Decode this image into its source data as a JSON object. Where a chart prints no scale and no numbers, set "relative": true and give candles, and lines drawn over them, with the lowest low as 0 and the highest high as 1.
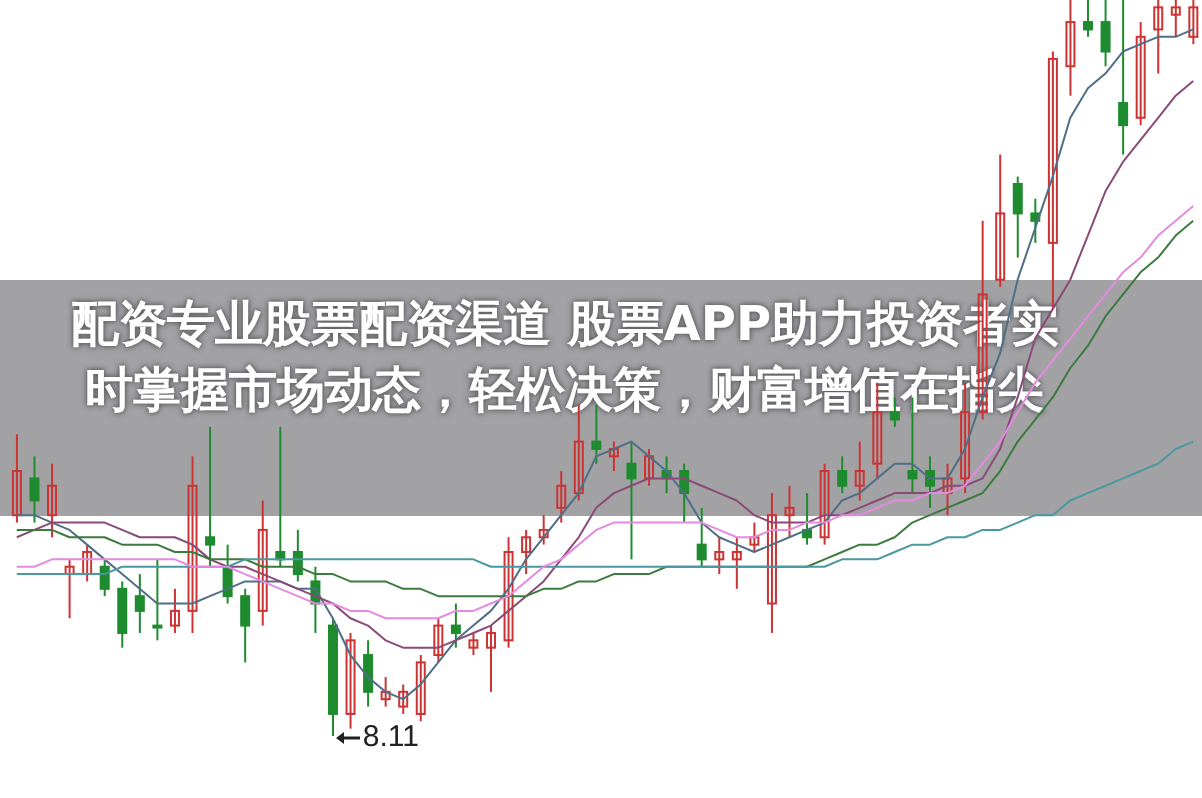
{
  "chart_data": {
    "type": "candlestick",
    "title": "配资专业股票配资渠道 股票APP助力投资者实时掌握市场动态，轻松决策，财富增值在指尖",
    "relative": true,
    "tick_labels": false,
    "annotations": [
      "8.11"
    ],
    "categories": [
      null,
      null,
      null,
      null,
      null,
      null,
      null,
      null,
      null,
      null,
      null,
      null,
      null,
      null,
      null,
      null,
      null,
      null,
      null,
      null,
      null,
      null,
      null,
      null,
      null,
      null,
      null,
      null,
      null,
      null,
      null,
      null,
      null,
      null,
      null,
      null,
      null,
      null,
      null,
      null,
      null,
      null,
      null,
      null,
      null,
      null,
      null,
      null,
      null,
      null,
      null,
      null,
      null,
      null,
      null,
      null,
      null,
      null,
      null,
      null,
      null,
      null,
      null,
      null,
      null,
      null,
      null,
      null
    ],
    "ohlc": [
      [
        0.3,
        0.41,
        0.29,
        0.36
      ],
      [
        0.35,
        0.38,
        0.29,
        0.32
      ],
      [
        0.3,
        0.37,
        0.27,
        0.34
      ],
      [
        0.22,
        0.24,
        0.16,
        0.23
      ],
      [
        0.22,
        0.26,
        0.21,
        0.25
      ],
      [
        0.23,
        0.24,
        0.19,
        0.2
      ],
      [
        0.2,
        0.21,
        0.12,
        0.14
      ],
      [
        0.19,
        0.22,
        0.14,
        0.17
      ],
      [
        0.15,
        0.24,
        0.13,
        0.15
      ],
      [
        0.15,
        0.2,
        0.14,
        0.17
      ],
      [
        0.17,
        0.38,
        0.14,
        0.34
      ],
      [
        0.27,
        0.42,
        0.23,
        0.26
      ],
      [
        0.23,
        0.26,
        0.18,
        0.19
      ],
      [
        0.19,
        0.2,
        0.1,
        0.15
      ],
      [
        0.17,
        0.32,
        0.15,
        0.28
      ],
      [
        0.25,
        0.42,
        0.23,
        0.24
      ],
      [
        0.25,
        0.28,
        0.21,
        0.22
      ],
      [
        0.21,
        0.23,
        0.14,
        0.18
      ],
      [
        0.15,
        0.16,
        0,
        0.03
      ],
      [
        0.03,
        0.14,
        0.01,
        0.13
      ],
      [
        0.11,
        0.13,
        0.04,
        0.06
      ],
      [
        0.05,
        0.08,
        0.04,
        0.06
      ],
      [
        0.04,
        0.07,
        0.03,
        0.06
      ],
      [
        0.03,
        0.11,
        0.02,
        0.1
      ],
      [
        0.11,
        0.16,
        0.1,
        0.15
      ],
      [
        0.15,
        0.18,
        0.12,
        0.14
      ],
      [
        0.12,
        0.14,
        0.11,
        0.13
      ],
      [
        0.12,
        0.15,
        0.06,
        0.14
      ],
      [
        0.13,
        0.27,
        0.12,
        0.25
      ],
      [
        0.25,
        0.28,
        0.22,
        0.27
      ],
      [
        0.27,
        0.3,
        0.26,
        0.28
      ],
      [
        0.31,
        0.36,
        0.29,
        0.34
      ],
      [
        0.33,
        0.45,
        0.32,
        0.4
      ],
      [
        0.4,
        0.45,
        0.37,
        0.39
      ],
      [
        0.38,
        0.4,
        0.36,
        0.39
      ],
      [
        0.37,
        0.4,
        0.24,
        0.35
      ],
      [
        0.35,
        0.39,
        0.34,
        0.38
      ],
      [
        0.36,
        0.38,
        0.33,
        0.35
      ],
      [
        0.36,
        0.37,
        0.29,
        0.33
      ],
      [
        0.26,
        0.31,
        0.23,
        0.24
      ],
      [
        0.24,
        0.27,
        0.22,
        0.25
      ],
      [
        0.24,
        0.27,
        0.2,
        0.25
      ],
      [
        0.26,
        0.29,
        0.25,
        0.27
      ],
      [
        0.18,
        0.33,
        0.14,
        0.3
      ],
      [
        0.3,
        0.34,
        0.27,
        0.31
      ],
      [
        0.28,
        0.33,
        0.26,
        0.27
      ],
      [
        0.27,
        0.37,
        0.26,
        0.36
      ],
      [
        0.36,
        0.38,
        0.33,
        0.34
      ],
      [
        0.34,
        0.4,
        0.32,
        0.36
      ],
      [
        0.37,
        0.48,
        0.35,
        0.44
      ],
      [
        0.44,
        0.46,
        0.42,
        0.43
      ],
      [
        0.36,
        0.46,
        0.33,
        0.35
      ],
      [
        0.36,
        0.38,
        0.31,
        0.34
      ],
      [
        0.33,
        0.37,
        0.3,
        0.35
      ],
      [
        0.35,
        0.48,
        0.33,
        0.44
      ],
      [
        0.44,
        0.7,
        0.43,
        0.6
      ],
      [
        0.62,
        0.79,
        0.61,
        0.71
      ],
      [
        0.75,
        0.76,
        0.65,
        0.71
      ],
      [
        0.71,
        0.73,
        0.67,
        0.7
      ],
      [
        0.67,
        0.93,
        0.58,
        0.92
      ],
      [
        0.91,
        1,
        0.87,
        0.97
      ],
      [
        0.97,
        1,
        0.95,
        0.96
      ],
      [
        0.97,
        1,
        0.91,
        0.93
      ],
      [
        0.86,
        1,
        0.79,
        0.83
      ],
      [
        0.84,
        0.97,
        0.83,
        0.95
      ],
      [
        0.96,
        1,
        0.9,
        0.99
      ],
      [
        0.98,
        1,
        0.95,
        0.99
      ],
      [
        0.95,
        1,
        0.94,
        0.99
      ]
    ],
    "colors": [
      "#cc3333",
      "#1e8c2e",
      "#cc3333",
      "#cc3333",
      "#cc3333",
      "#1e8c2e",
      "#1e8c2e",
      "#1e8c2e",
      "#1e8c2e",
      "#cc3333",
      "#cc3333",
      "#1e8c2e",
      "#1e8c2e",
      "#1e8c2e",
      "#cc3333",
      "#1e8c2e",
      "#1e8c2e",
      "#1e8c2e",
      "#1e8c2e",
      "#cc3333",
      "#1e8c2e",
      "#cc3333",
      "#cc3333",
      "#cc3333",
      "#cc3333",
      "#1e8c2e",
      "#cc3333",
      "#cc3333",
      "#cc3333",
      "#cc3333",
      "#cc3333",
      "#cc3333",
      "#cc3333",
      "#1e8c2e",
      "#cc3333",
      "#1e8c2e",
      "#cc3333",
      "#1e8c2e",
      "#1e8c2e",
      "#1e8c2e",
      "#cc3333",
      "#cc3333",
      "#cc3333",
      "#cc3333",
      "#cc3333",
      "#1e8c2e",
      "#cc3333",
      "#1e8c2e",
      "#cc3333",
      "#cc3333",
      "#1e8c2e",
      "#1e8c2e",
      "#1e8c2e",
      "#cc3333",
      "#cc3333",
      "#cc3333",
      "#cc3333",
      "#1e8c2e",
      "#1e8c2e",
      "#cc3333",
      "#cc3333",
      "#1e8c2e",
      "#1e8c2e",
      "#1e8c2e",
      "#cc3333",
      "#cc3333",
      "#cc3333",
      "#cc3333"
    ],
    "series": [
      {
        "type": "line",
        "color": "#4f6f86",
        "values": [
          0.3,
          0.3,
          0.29,
          0.28,
          0.26,
          0.24,
          0.22,
          0.2,
          0.18,
          0.18,
          0.18,
          0.19,
          0.2,
          0.21,
          0.21,
          0.21,
          0.2,
          0.2,
          0.16,
          0.11,
          0.08,
          0.06,
          0.05,
          0.07,
          0.1,
          0.13,
          0.15,
          0.17,
          0.2,
          0.24,
          0.27,
          0.3,
          0.33,
          0.38,
          0.39,
          0.4,
          0.38,
          0.36,
          0.33,
          0.29,
          0.27,
          0.26,
          0.25,
          0.26,
          0.27,
          0.28,
          0.29,
          0.32,
          0.33,
          0.35,
          0.37,
          0.37,
          0.35,
          0.35,
          0.39,
          0.46,
          0.52,
          0.62,
          0.69,
          0.76,
          0.84,
          0.88,
          0.9,
          0.93,
          0.94,
          0.95,
          0.95,
          0.96
        ]
      },
      {
        "type": "line",
        "color": "#8a4a78",
        "values": [
          0.27,
          0.28,
          0.29,
          0.29,
          0.29,
          0.29,
          0.28,
          0.27,
          0.27,
          0.27,
          0.26,
          0.24,
          0.23,
          0.23,
          0.22,
          0.21,
          0.2,
          0.19,
          0.18,
          0.16,
          0.15,
          0.13,
          0.12,
          0.12,
          0.12,
          0.13,
          0.14,
          0.15,
          0.17,
          0.19,
          0.21,
          0.24,
          0.27,
          0.31,
          0.33,
          0.34,
          0.35,
          0.35,
          0.35,
          0.34,
          0.33,
          0.32,
          0.3,
          0.29,
          0.29,
          0.29,
          0.3,
          0.3,
          0.31,
          0.32,
          0.33,
          0.33,
          0.33,
          0.34,
          0.34,
          0.35,
          0.39,
          0.46,
          0.54,
          0.58,
          0.62,
          0.68,
          0.74,
          0.78,
          0.81,
          0.84,
          0.87,
          0.89
        ]
      },
      {
        "type": "line",
        "color": "#3d7a3d",
        "values": [
          0.28,
          0.28,
          0.28,
          0.27,
          0.27,
          0.27,
          0.26,
          0.26,
          0.26,
          0.25,
          0.25,
          0.24,
          0.24,
          0.24,
          0.23,
          0.23,
          0.23,
          0.22,
          0.22,
          0.21,
          0.21,
          0.21,
          0.2,
          0.2,
          0.19,
          0.19,
          0.19,
          0.19,
          0.19,
          0.19,
          0.2,
          0.2,
          0.21,
          0.21,
          0.22,
          0.22,
          0.22,
          0.23,
          0.23,
          0.23,
          0.23,
          0.23,
          0.23,
          0.23,
          0.23,
          0.23,
          0.24,
          0.25,
          0.26,
          0.26,
          0.27,
          0.29,
          0.3,
          0.31,
          0.32,
          0.33,
          0.36,
          0.4,
          0.43,
          0.46,
          0.5,
          0.53,
          0.57,
          0.6,
          0.63,
          0.65,
          0.68,
          0.7
        ]
      },
      {
        "type": "line",
        "color": "#4a98a0",
        "values": [
          0.22,
          0.22,
          0.22,
          0.22,
          0.22,
          0.22,
          0.23,
          0.23,
          0.23,
          0.23,
          0.23,
          0.23,
          0.23,
          0.24,
          0.24,
          0.24,
          0.24,
          0.24,
          0.24,
          0.24,
          0.24,
          0.24,
          0.24,
          0.24,
          0.24,
          0.24,
          0.24,
          0.23,
          0.23,
          0.23,
          0.23,
          0.23,
          0.23,
          0.23,
          0.23,
          0.23,
          0.23,
          0.23,
          0.23,
          0.23,
          0.23,
          0.23,
          0.23,
          0.23,
          0.23,
          0.23,
          0.23,
          0.24,
          0.24,
          0.24,
          0.25,
          0.26,
          0.26,
          0.27,
          0.27,
          0.28,
          0.28,
          0.29,
          0.3,
          0.3,
          0.32,
          0.33,
          0.34,
          0.35,
          0.36,
          0.37,
          0.39,
          0.4
        ]
      },
      {
        "type": "line",
        "color": "#e48ae0",
        "values": [
          0.23,
          0.23,
          0.24,
          0.24,
          0.24,
          0.24,
          0.24,
          0.24,
          0.24,
          0.24,
          0.23,
          0.23,
          0.23,
          0.22,
          0.21,
          0.2,
          0.19,
          0.18,
          0.18,
          0.17,
          0.17,
          0.16,
          0.16,
          0.16,
          0.16,
          0.17,
          0.17,
          0.18,
          0.19,
          0.21,
          0.23,
          0.24,
          0.26,
          0.28,
          0.29,
          0.29,
          0.29,
          0.29,
          0.29,
          0.29,
          0.28,
          0.27,
          0.27,
          0.28,
          0.28,
          0.29,
          0.29,
          0.3,
          0.3,
          0.31,
          0.32,
          0.32,
          0.33,
          0.33,
          0.34,
          0.37,
          0.4,
          0.44,
          0.48,
          0.51,
          0.54,
          0.57,
          0.6,
          0.63,
          0.65,
          0.68,
          0.7,
          0.72
        ]
      }
    ]
  }
}
